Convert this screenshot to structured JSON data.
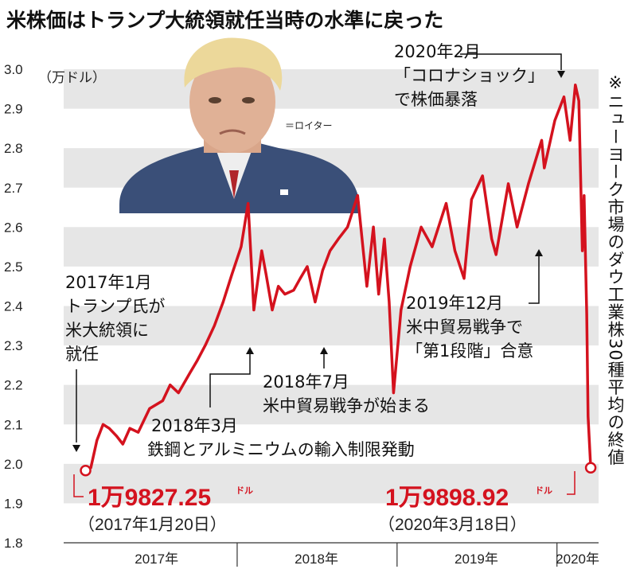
{
  "chart_data": {
    "type": "line",
    "title": "米株価はトランプ大統領就任当時の水準に戻った",
    "y_unit": "（万ドル）",
    "ylim": [
      1.8,
      3.0
    ],
    "y_ticks": [
      "3.0",
      "2.9",
      "2.8",
      "2.7",
      "2.6",
      "2.5",
      "2.4",
      "2.3",
      "2.2",
      "2.1",
      "2.0",
      "1.9",
      "1.8"
    ],
    "x_categories": [
      "2017年",
      "2018年",
      "2019年",
      "2020年"
    ],
    "grid": "alternating horizontal bands",
    "series": [
      {
        "color": "#d4121e",
        "points": [
          [
            "2017-01-20",
            1.983
          ],
          [
            "2017-02-01",
            1.99
          ],
          [
            "2017-02-15",
            2.06
          ],
          [
            "2017-03-01",
            2.1
          ],
          [
            "2017-03-15",
            2.09
          ],
          [
            "2017-04-01",
            2.07
          ],
          [
            "2017-04-15",
            2.05
          ],
          [
            "2017-05-01",
            2.09
          ],
          [
            "2017-05-20",
            2.08
          ],
          [
            "2017-06-15",
            2.14
          ],
          [
            "2017-07-15",
            2.16
          ],
          [
            "2017-08-01",
            2.2
          ],
          [
            "2017-08-20",
            2.18
          ],
          [
            "2017-09-15",
            2.23
          ],
          [
            "2017-10-01",
            2.26
          ],
          [
            "2017-10-20",
            2.3
          ],
          [
            "2017-11-10",
            2.35
          ],
          [
            "2017-11-30",
            2.41
          ],
          [
            "2017-12-20",
            2.48
          ],
          [
            "2018-01-10",
            2.55
          ],
          [
            "2018-01-26",
            2.66
          ],
          [
            "2018-02-08",
            2.39
          ],
          [
            "2018-02-26",
            2.54
          ],
          [
            "2018-03-08",
            2.48
          ],
          [
            "2018-03-22",
            2.39
          ],
          [
            "2018-04-05",
            2.45
          ],
          [
            "2018-04-20",
            2.43
          ],
          [
            "2018-05-10",
            2.44
          ],
          [
            "2018-05-25",
            2.47
          ],
          [
            "2018-06-10",
            2.5
          ],
          [
            "2018-06-28",
            2.41
          ],
          [
            "2018-07-15",
            2.49
          ],
          [
            "2018-08-01",
            2.54
          ],
          [
            "2018-08-20",
            2.57
          ],
          [
            "2018-09-10",
            2.6
          ],
          [
            "2018-10-03",
            2.68
          ],
          [
            "2018-10-24",
            2.45
          ],
          [
            "2018-11-08",
            2.6
          ],
          [
            "2018-11-20",
            2.43
          ],
          [
            "2018-12-03",
            2.57
          ],
          [
            "2018-12-14",
            2.41
          ],
          [
            "2018-12-24",
            2.18
          ],
          [
            "2019-01-10",
            2.39
          ],
          [
            "2019-01-31",
            2.5
          ],
          [
            "2019-02-25",
            2.6
          ],
          [
            "2019-03-22",
            2.55
          ],
          [
            "2019-04-23",
            2.66
          ],
          [
            "2019-05-13",
            2.54
          ],
          [
            "2019-06-03",
            2.47
          ],
          [
            "2019-06-20",
            2.67
          ],
          [
            "2019-07-15",
            2.73
          ],
          [
            "2019-08-05",
            2.57
          ],
          [
            "2019-08-15",
            2.53
          ],
          [
            "2019-09-12",
            2.71
          ],
          [
            "2019-10-02",
            2.6
          ],
          [
            "2019-10-28",
            2.71
          ],
          [
            "2019-11-27",
            2.82
          ],
          [
            "2019-12-03",
            2.75
          ],
          [
            "2019-12-27",
            2.87
          ],
          [
            "2020-01-17",
            2.93
          ],
          [
            "2020-01-31",
            2.82
          ],
          [
            "2020-02-12",
            2.96
          ],
          [
            "2020-02-20",
            2.92
          ],
          [
            "2020-02-28",
            2.54
          ],
          [
            "2020-03-03",
            2.68
          ],
          [
            "2020-03-09",
            2.38
          ],
          [
            "2020-03-12",
            2.12
          ],
          [
            "2020-03-18",
            1.99
          ]
        ]
      }
    ],
    "start_point": {
      "value": "1万9827.25",
      "unit": "ドル",
      "date": "（2017年1月20日）"
    },
    "end_point": {
      "value": "1万9898.92",
      "unit": "ドル",
      "date": "（2020年3月18日）"
    },
    "annotations": [
      {
        "lines": [
          "2017年1月",
          "トランプ氏が",
          "米大統領に",
          "就任"
        ]
      },
      {
        "lines": [
          "2018年3月",
          "鉄鋼とアルミニウムの輸入制限発動"
        ]
      },
      {
        "lines": [
          "2018年7月",
          "米中貿易戦争が始まる"
        ]
      },
      {
        "lines": [
          "2019年12月",
          "米中貿易戦争で",
          "「第1段階」合意"
        ]
      },
      {
        "lines": [
          "2020年2月",
          "「コロナショック」",
          "で株価暴落"
        ]
      }
    ],
    "photo_credit": "＝ロイター",
    "side_note": "※ニューヨーク市場のダウ工業株30種平均の終値"
  }
}
